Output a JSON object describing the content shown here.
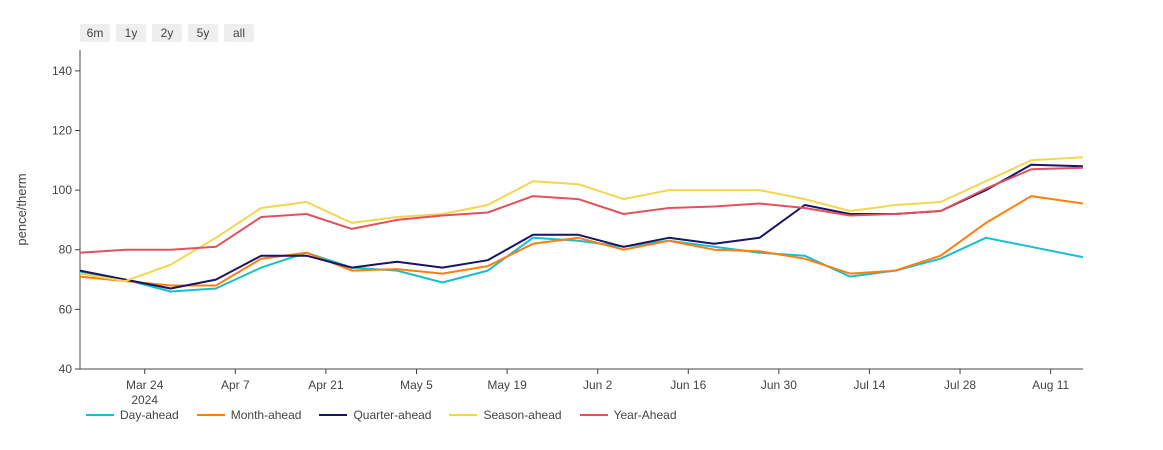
{
  "range_selector": {
    "buttons": [
      "6m",
      "1y",
      "2y",
      "5y",
      "all"
    ]
  },
  "chart_data": {
    "type": "line",
    "title": "",
    "xlabel": "",
    "ylabel": "pence/therm",
    "ylim": [
      40,
      147
    ],
    "yticks": [
      40,
      60,
      80,
      100,
      120,
      140
    ],
    "xlim": [
      "2024-03-14",
      "2024-08-16"
    ],
    "xticks": [
      {
        "date": "2024-03-24",
        "label": "Mar 24",
        "sublabel": "2024"
      },
      {
        "date": "2024-04-07",
        "label": "Apr 7"
      },
      {
        "date": "2024-04-21",
        "label": "Apr 21"
      },
      {
        "date": "2024-05-05",
        "label": "May 5"
      },
      {
        "date": "2024-05-19",
        "label": "May 19"
      },
      {
        "date": "2024-06-02",
        "label": "Jun 2"
      },
      {
        "date": "2024-06-16",
        "label": "Jun 16"
      },
      {
        "date": "2024-06-30",
        "label": "Jun 30"
      },
      {
        "date": "2024-07-14",
        "label": "Jul 14"
      },
      {
        "date": "2024-07-28",
        "label": "Jul 28"
      },
      {
        "date": "2024-08-11",
        "label": "Aug 11"
      }
    ],
    "grid": false,
    "legend_position": "bottom-left",
    "x": [
      "2024-03-14",
      "2024-03-21",
      "2024-03-28",
      "2024-04-04",
      "2024-04-11",
      "2024-04-18",
      "2024-04-25",
      "2024-05-02",
      "2024-05-09",
      "2024-05-16",
      "2024-05-23",
      "2024-05-30",
      "2024-06-06",
      "2024-06-13",
      "2024-06-20",
      "2024-06-27",
      "2024-07-04",
      "2024-07-11",
      "2024-07-18",
      "2024-07-25",
      "2024-08-01",
      "2024-08-08",
      "2024-08-16"
    ],
    "series": [
      {
        "name": "Day-ahead",
        "color": "#17becf",
        "values": [
          72.5,
          70,
          66,
          67,
          74,
          79,
          74,
          73,
          69,
          73,
          84,
          83,
          81,
          83,
          81,
          79,
          78,
          71,
          73,
          77,
          84,
          81,
          77.5
        ]
      },
      {
        "name": "Month-ahead",
        "color": "#ff7f0e",
        "values": [
          71,
          69.5,
          68,
          68,
          77,
          79,
          73,
          73.5,
          72,
          74.5,
          82,
          84,
          80,
          83,
          80,
          79.5,
          77,
          72,
          73,
          78,
          89,
          98,
          95.5
        ]
      },
      {
        "name": "Quarter-ahead",
        "color": "#1a1464",
        "values": [
          73,
          70,
          67,
          70,
          78,
          78,
          74,
          76,
          74,
          76.5,
          85,
          85,
          81,
          84,
          82,
          84,
          95,
          92,
          92,
          93,
          100,
          108.5,
          108
        ]
      },
      {
        "name": "Season-ahead",
        "color": "#f3d64e",
        "values": [
          72,
          69.5,
          75,
          84,
          94,
          96,
          89,
          91,
          92,
          95,
          103,
          102,
          97,
          100,
          100,
          100,
          97,
          93,
          95,
          96,
          103,
          110,
          111
        ]
      },
      {
        "name": "Year-Ahead",
        "color": "#e0525e",
        "values": [
          79,
          80,
          80,
          81,
          91,
          92,
          87,
          90,
          91.5,
          92.5,
          98,
          97,
          92,
          94,
          94.5,
          95.5,
          94,
          91.5,
          92,
          93,
          100.5,
          107,
          107.5
        ]
      }
    ]
  }
}
